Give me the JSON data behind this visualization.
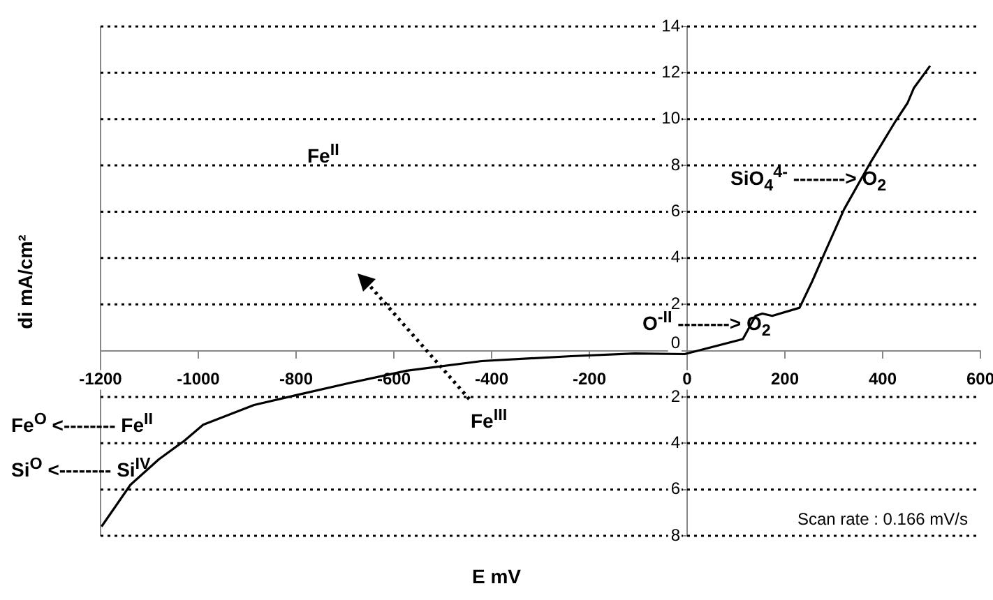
{
  "chart_data": {
    "type": "line",
    "xlabel": "E mV",
    "ylabel": "di mA/cm²",
    "x": [
      -1198,
      -1139,
      -1081,
      -1029,
      -990,
      -886,
      -795,
      -691,
      -574,
      -420,
      -237,
      -107,
      -5,
      114,
      140,
      154,
      174,
      230,
      256,
      283,
      321,
      373,
      426,
      451,
      464,
      497
    ],
    "series": [
      {
        "color": "#000000",
        "values": [
          -7.6,
          -5.8,
          -4.7,
          -3.9,
          -3.2,
          -2.35,
          -1.9,
          -1.4,
          -0.87,
          -0.45,
          -0.24,
          -0.12,
          -0.15,
          0.5,
          1.5,
          1.6,
          1.5,
          1.85,
          3.0,
          4.3,
          6.1,
          8.05,
          9.9,
          10.7,
          11.35,
          12.3
        ]
      }
    ],
    "xlim": [
      -1200,
      600
    ],
    "xticks": [
      -1200,
      -1000,
      -800,
      -600,
      -400,
      -200,
      0,
      200,
      400,
      600
    ],
    "ylim": [
      -8,
      14
    ],
    "yticks": [
      {
        "value": -8,
        "label": "8"
      },
      {
        "value": -6,
        "label": "6"
      },
      {
        "value": -4,
        "label": "4"
      },
      {
        "value": -2,
        "label": "2"
      },
      0,
      2,
      4,
      6,
      8,
      10,
      12,
      14
    ],
    "grid": "y",
    "marker": "none",
    "line_style": "solid",
    "legend": false,
    "annotations": [
      "Fe$^{II}$",
      "Fe$^{III}$",
      "O$^{-II}$ --------> O$_{2}$",
      "SiO$_{4}$$^{4-}$ --------> O$_{2}$",
      "Fe$^{O}$ <-------- Fe$^{II}$",
      "Si$^{O}$ <-------- Si$^{IV}$",
      "Scan rate : 0.166 mV/s"
    ]
  }
}
